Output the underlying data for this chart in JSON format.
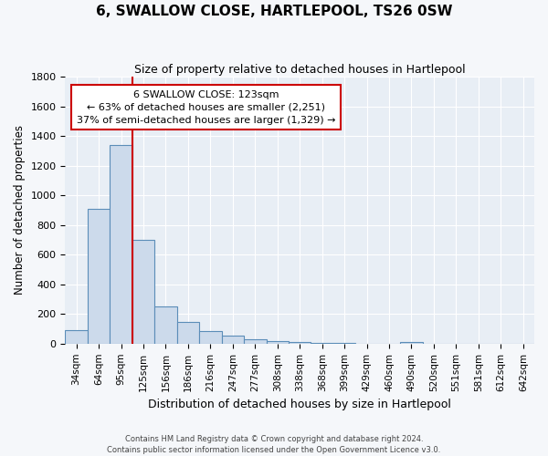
{
  "title": "6, SWALLOW CLOSE, HARTLEPOOL, TS26 0SW",
  "subtitle": "Size of property relative to detached houses in Hartlepool",
  "xlabel": "Distribution of detached houses by size in Hartlepool",
  "ylabel": "Number of detached properties",
  "bar_color": "#ccdaeb",
  "bar_edge_color": "#5b8db8",
  "background_color": "#e8eef5",
  "grid_color": "#ffffff",
  "categories": [
    "34sqm",
    "64sqm",
    "95sqm",
    "125sqm",
    "156sqm",
    "186sqm",
    "216sqm",
    "247sqm",
    "277sqm",
    "308sqm",
    "338sqm",
    "368sqm",
    "399sqm",
    "429sqm",
    "460sqm",
    "490sqm",
    "520sqm",
    "551sqm",
    "581sqm",
    "612sqm",
    "642sqm"
  ],
  "values": [
    90,
    910,
    1340,
    700,
    250,
    145,
    82,
    55,
    28,
    18,
    10,
    5,
    2,
    0,
    0,
    12,
    0,
    0,
    0,
    0,
    0
  ],
  "ylim": [
    0,
    1800
  ],
  "yticks": [
    0,
    200,
    400,
    600,
    800,
    1000,
    1200,
    1400,
    1600,
    1800
  ],
  "property_line_label": "6 SWALLOW CLOSE: 123sqm",
  "annotation_line1": "← 63% of detached houses are smaller (2,251)",
  "annotation_line2": "37% of semi-detached houses are larger (1,329) →",
  "box_facecolor": "#ffffff",
  "box_edgecolor": "#cc0000",
  "vline_color": "#cc0000",
  "vline_x_index": 2.5,
  "footer1": "Contains HM Land Registry data © Crown copyright and database right 2024.",
  "footer2": "Contains public sector information licensed under the Open Government Licence v3.0."
}
